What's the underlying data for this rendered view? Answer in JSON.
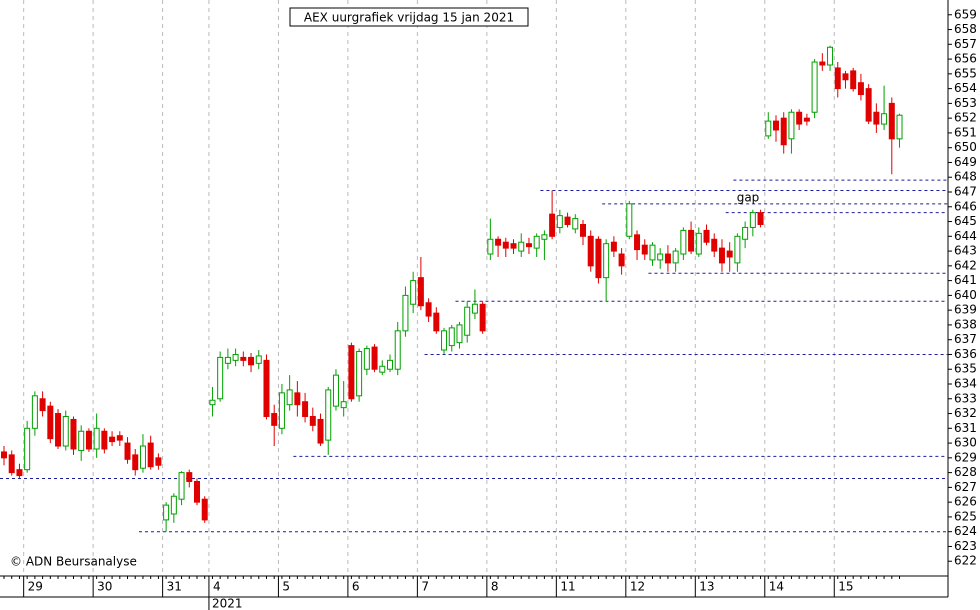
{
  "chart_data": {
    "type": "candlestick",
    "title": "AEX uurgrafiek vrijdag 15 jan 2021",
    "copyright": "© ADN Beursanalyse",
    "annotation": "gap",
    "year_label": {
      "label": "2021",
      "at": 27
    },
    "categories": [
      null,
      null,
      null,
      "29",
      null,
      null,
      null,
      null,
      null,
      null,
      null,
      null,
      "30",
      null,
      null,
      null,
      null,
      null,
      null,
      null,
      null,
      "31",
      null,
      null,
      null,
      null,
      null,
      "4",
      null,
      null,
      null,
      null,
      null,
      null,
      null,
      null,
      "5",
      null,
      null,
      null,
      null,
      null,
      null,
      null,
      null,
      "6",
      null,
      null,
      null,
      null,
      null,
      null,
      null,
      null,
      "7",
      null,
      null,
      null,
      null,
      null,
      null,
      null,
      null,
      "8",
      null,
      null,
      null,
      null,
      null,
      null,
      null,
      null,
      "11",
      null,
      null,
      null,
      null,
      null,
      null,
      null,
      null,
      "12",
      null,
      null,
      null,
      null,
      null,
      null,
      null,
      null,
      "13",
      null,
      null,
      null,
      null,
      null,
      null,
      null,
      null,
      "14",
      null,
      null,
      null,
      null,
      null,
      null,
      null,
      null,
      "15",
      null,
      null,
      null,
      null,
      null,
      null,
      null,
      null
    ],
    "open": [
      629.4,
      629.2,
      628.2,
      628.2,
      631.0,
      633.0,
      632.5,
      632.0,
      629.8,
      631.6,
      629.5,
      630.8,
      629.6,
      630.8,
      630.4,
      630.5,
      630.0,
      629.2,
      628.3,
      630.0,
      629.0,
      624.8,
      625.2,
      626.2,
      628.0,
      627.4,
      626.2,
      632.6,
      633.0,
      635.4,
      635.6,
      635.8,
      635.8,
      635.4,
      635.6,
      632.0,
      631.0,
      632.6,
      633.4,
      632.8,
      631.8,
      631.6,
      630.2,
      632.5,
      632.4,
      636.6,
      633.2,
      635.0,
      636.5,
      634.8,
      635.0,
      635.0,
      637.6,
      639.4,
      641.2,
      639.5,
      638.8,
      636.3,
      636.6,
      636.8,
      637.3,
      638.8,
      639.4,
      642.8,
      643.8,
      643.6,
      643.5,
      643.0,
      643.5,
      643.2,
      643.8,
      645.5,
      644.6,
      645.3,
      644.5,
      644.8,
      644.0,
      643.8,
      641.2,
      643.6,
      642.8,
      644.0,
      644.1,
      643.4,
      642.4,
      642.4,
      642.8,
      642.2,
      642.8,
      644.4,
      642.8,
      644.4,
      643.8,
      643.2,
      643.0,
      642.2,
      643.8,
      644.6,
      645.6,
      650.8,
      651.8,
      652.0,
      650.6,
      652.4,
      652.0,
      652.4,
      655.8,
      655.6,
      655.4,
      655.0,
      655.2,
      654.4,
      654.0,
      652.4,
      651.6,
      653.0,
      650.6
    ],
    "high": [
      629.8,
      629.5,
      628.6,
      631.5,
      633.5,
      633.5,
      632.8,
      632.3,
      632.2,
      631.8,
      631.2,
      631.0,
      632.0,
      631.0,
      630.8,
      630.8,
      630.4,
      629.6,
      630.6,
      630.5,
      629.3,
      626.0,
      626.6,
      628.1,
      628.2,
      627.6,
      626.4,
      633.8,
      636.2,
      636.4,
      636.4,
      636.2,
      636.1,
      636.3,
      636.0,
      632.6,
      634.0,
      634.6,
      634.2,
      633.4,
      632.4,
      632.0,
      633.8,
      635.0,
      634.2,
      636.8,
      636.4,
      636.6,
      636.7,
      635.6,
      636.0,
      638.2,
      640.6,
      641.6,
      642.6,
      639.8,
      639.2,
      637.8,
      638.0,
      638.2,
      639.6,
      640.4,
      639.6,
      645.2,
      644.0,
      643.9,
      643.8,
      644.2,
      643.9,
      644.2,
      644.4,
      647.1,
      645.8,
      645.6,
      645.5,
      645.1,
      644.4,
      644.0,
      643.8,
      644.0,
      643.2,
      646.4,
      644.4,
      643.8,
      643.6,
      643.2,
      643.4,
      643.2,
      644.6,
      645.0,
      644.6,
      644.8,
      644.2,
      643.8,
      643.6,
      644.2,
      645.0,
      645.8,
      645.8,
      652.4,
      652.2,
      652.4,
      652.6,
      652.6,
      652.3,
      656.0,
      656.4,
      656.9,
      655.8,
      655.2,
      655.4,
      655.0,
      654.3,
      653.0,
      654.2,
      653.4,
      652.3
    ],
    "low": [
      628.5,
      627.8,
      627.6,
      628.0,
      630.5,
      631.8,
      630.0,
      629.6,
      629.5,
      629.2,
      628.8,
      629.4,
      629.0,
      629.3,
      629.8,
      629.8,
      628.6,
      627.8,
      628.0,
      628.2,
      628.2,
      624.0,
      624.6,
      625.8,
      627.0,
      625.8,
      624.6,
      631.8,
      632.8,
      635.0,
      635.2,
      635.2,
      634.8,
      635.0,
      631.6,
      629.8,
      630.6,
      632.2,
      631.8,
      631.4,
      630.8,
      629.8,
      629.2,
      632.2,
      631.8,
      632.8,
      632.8,
      634.6,
      634.8,
      634.6,
      634.8,
      634.6,
      637.2,
      638.8,
      639.0,
      638.2,
      637.4,
      636.0,
      636.2,
      636.4,
      636.8,
      638.4,
      637.4,
      642.4,
      642.6,
      642.6,
      642.8,
      642.6,
      642.8,
      642.6,
      642.4,
      643.8,
      644.2,
      644.6,
      644.2,
      643.4,
      641.6,
      640.8,
      639.6,
      642.6,
      641.4,
      643.8,
      642.4,
      642.4,
      642.0,
      641.8,
      641.6,
      641.6,
      642.4,
      642.8,
      642.6,
      643.4,
      642.6,
      641.6,
      641.6,
      641.6,
      643.2,
      644.0,
      644.6,
      650.6,
      650.4,
      649.6,
      649.6,
      651.2,
      651.5,
      652.0,
      655.2,
      655.2,
      653.4,
      654.0,
      653.8,
      653.2,
      651.6,
      651.0,
      651.2,
      648.2,
      650.0
    ],
    "close": [
      629.0,
      628.0,
      627.8,
      631.0,
      633.2,
      632.2,
      630.3,
      629.8,
      631.8,
      629.6,
      630.8,
      629.6,
      631.0,
      629.6,
      630.1,
      630.2,
      628.9,
      628.2,
      629.8,
      628.4,
      628.5,
      625.8,
      626.4,
      628.0,
      627.4,
      626.0,
      624.8,
      632.9,
      635.8,
      635.8,
      636.0,
      635.6,
      635.3,
      635.9,
      631.8,
      631.2,
      633.4,
      633.6,
      632.6,
      631.8,
      631.2,
      630.0,
      633.6,
      634.6,
      632.8,
      633.0,
      636.2,
      636.4,
      635.0,
      635.2,
      635.6,
      637.6,
      640.0,
      641.0,
      639.3,
      638.6,
      637.6,
      637.6,
      637.8,
      638.0,
      639.2,
      639.4,
      637.6,
      643.8,
      643.4,
      643.2,
      643.2,
      643.6,
      643.3,
      644.0,
      644.1,
      644.0,
      645.4,
      644.8,
      645.2,
      644.0,
      642.0,
      641.2,
      643.5,
      643.0,
      642.0,
      646.2,
      643.1,
      642.8,
      643.4,
      642.8,
      642.2,
      643.0,
      644.4,
      643.0,
      644.2,
      643.6,
      643.0,
      642.2,
      642.6,
      644.0,
      644.6,
      645.6,
      644.8,
      651.8,
      651.2,
      650.2,
      652.4,
      651.6,
      651.8,
      655.8,
      655.6,
      656.8,
      654.0,
      654.6,
      654.0,
      653.6,
      651.8,
      651.6,
      652.3,
      650.6,
      652.2
    ],
    "support_lines": [
      {
        "value": 627.6,
        "start": 0
      },
      {
        "value": 629.1,
        "start": 38
      },
      {
        "value": 624.0,
        "start": 18
      },
      {
        "value": 636.0,
        "start": 55
      },
      {
        "value": 639.6,
        "start": 59
      },
      {
        "value": 641.5,
        "start": 84
      },
      {
        "value": 645.6,
        "start": 94
      },
      {
        "value": 646.2,
        "start": 78
      },
      {
        "value": 647.1,
        "start": 70
      },
      {
        "value": 647.8,
        "start": 95
      }
    ],
    "ylim": [
      621,
      660
    ],
    "yticks": [
      622,
      623,
      624,
      625,
      626,
      627,
      628,
      629,
      630,
      631,
      632,
      633,
      634,
      635,
      636,
      637,
      638,
      639,
      640,
      641,
      642,
      643,
      644,
      645,
      646,
      647,
      648,
      649,
      650,
      651,
      652,
      653,
      654,
      655,
      656,
      657,
      658,
      659
    ],
    "grid": true,
    "up_color": "#00a000",
    "down_color": "#e00000",
    "line_color": "#1c1c9c"
  }
}
